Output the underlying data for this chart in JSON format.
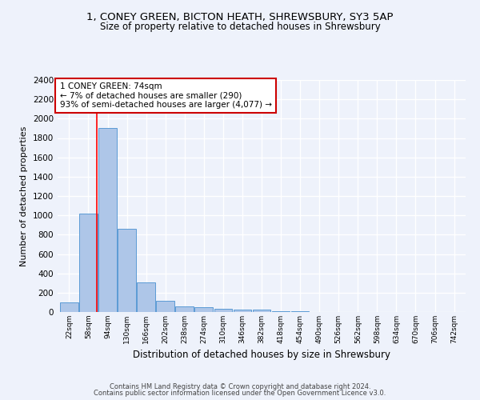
{
  "title_line1": "1, CONEY GREEN, BICTON HEATH, SHREWSBURY, SY3 5AP",
  "title_line2": "Size of property relative to detached houses in Shrewsbury",
  "xlabel": "Distribution of detached houses by size in Shrewsbury",
  "ylabel": "Number of detached properties",
  "bar_color": "#aec6e8",
  "bar_edge_color": "#5b9bd5",
  "bins": [
    22,
    58,
    94,
    130,
    166,
    202,
    238,
    274,
    310,
    346,
    382,
    418,
    454,
    490,
    526,
    562,
    598,
    634,
    670,
    706,
    742
  ],
  "counts": [
    100,
    1020,
    1900,
    860,
    310,
    120,
    60,
    50,
    30,
    25,
    25,
    5,
    5,
    3,
    2,
    2,
    1,
    1,
    1,
    1
  ],
  "red_line_x": 74,
  "annotation_text": "1 CONEY GREEN: 74sqm\n← 7% of detached houses are smaller (290)\n93% of semi-detached houses are larger (4,077) →",
  "annotation_box_color": "#ffffff",
  "annotation_box_edge": "#cc0000",
  "ylim": [
    0,
    2400
  ],
  "yticks": [
    0,
    200,
    400,
    600,
    800,
    1000,
    1200,
    1400,
    1600,
    1800,
    2000,
    2200,
    2400
  ],
  "footer_line1": "Contains HM Land Registry data © Crown copyright and database right 2024.",
  "footer_line2": "Contains public sector information licensed under the Open Government Licence v3.0.",
  "bg_color": "#eef2fb",
  "grid_color": "#ffffff"
}
